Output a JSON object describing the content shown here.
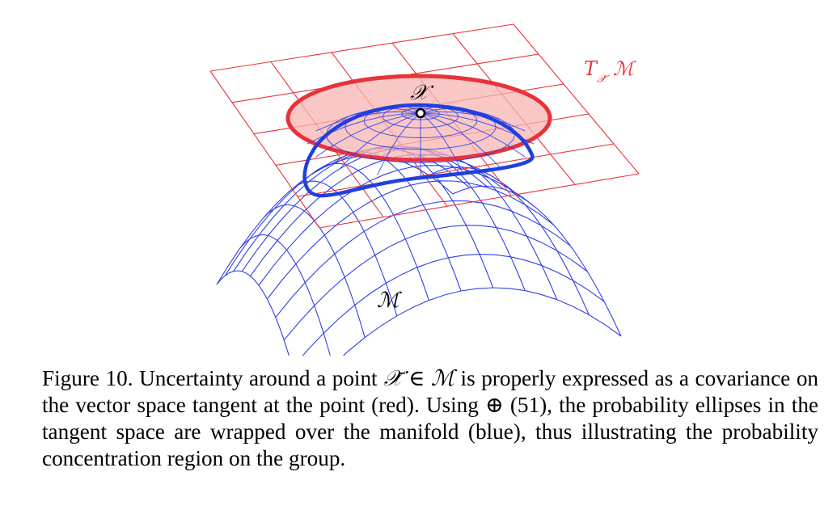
{
  "figure": {
    "label_tangent_space": "T",
    "label_tangent_sub": "𝒳̄",
    "label_tangent_manifold": "ℳ",
    "label_point": "𝒳",
    "label_manifold": "ℳ",
    "colors": {
      "tangent_grid": "#e8333a",
      "tangent_fill": "#f7b6b3",
      "ellipse_stroke": "#e8333a",
      "manifold_mesh": "#2f3fe8",
      "wrapped_region": "#1f3fe0"
    }
  },
  "caption": {
    "part1": "Figure 10.  Uncertainty around a point ",
    "point_symbol": "𝒳̄",
    "member_symbol": " ∈ ",
    "manifold_symbol": "ℳ",
    "part2": " is properly expressed as a covariance on the vector space tangent at the point (red). Using ",
    "oplus_symbol": "⊕",
    "part3": " (51), the probability ellipses in the tangent space are wrapped over the manifold (blue), thus illustrating the probability concentration region on the group."
  }
}
